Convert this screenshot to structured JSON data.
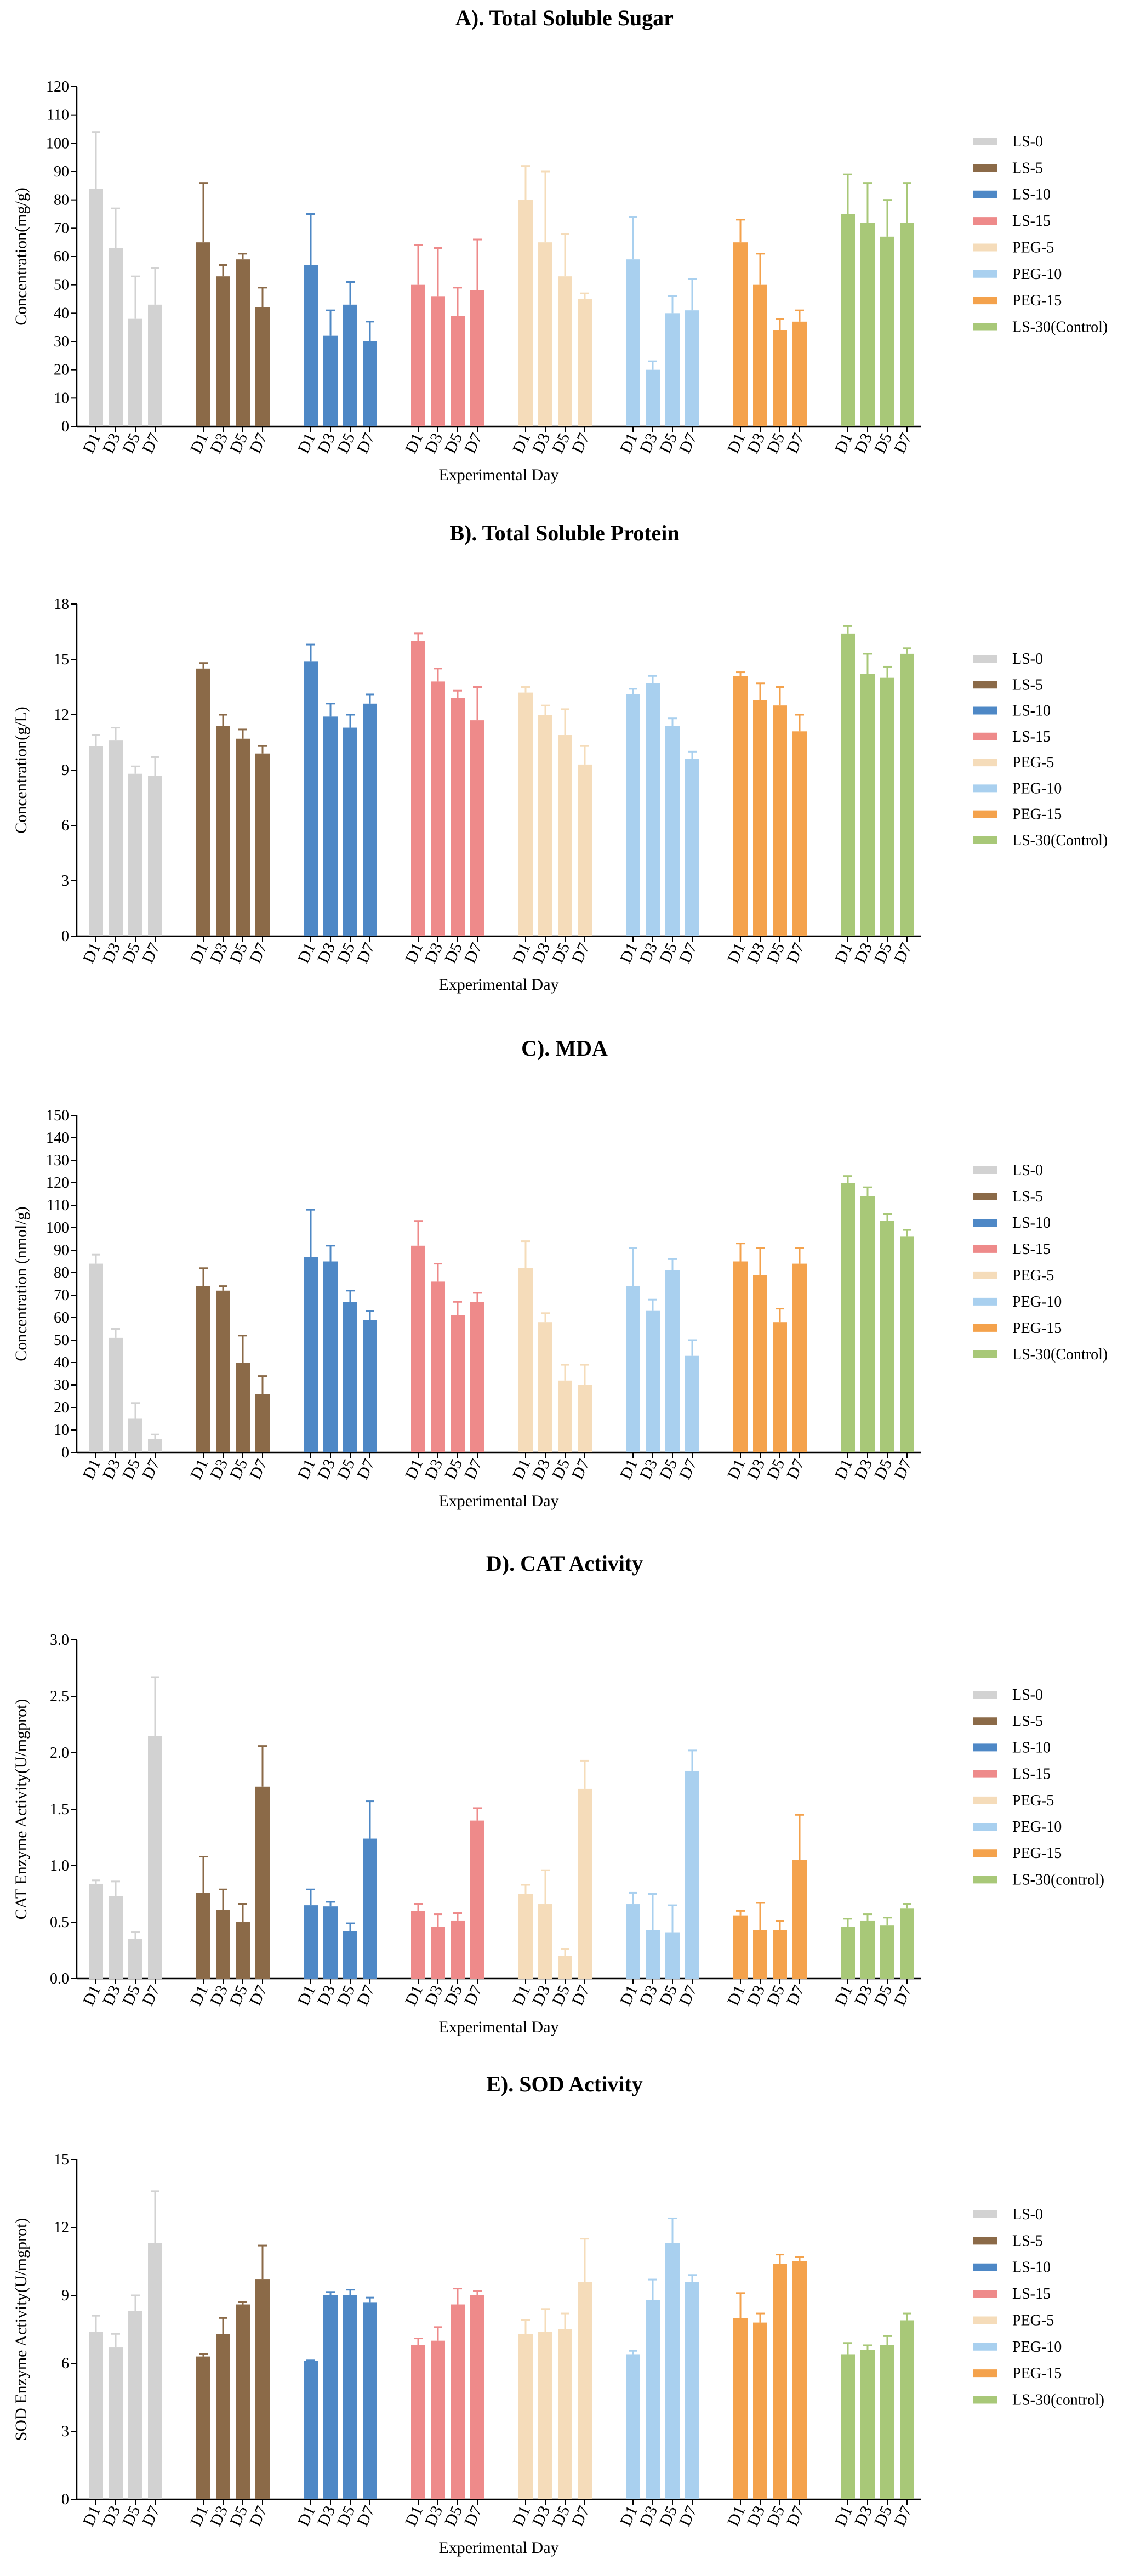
{
  "colors": {
    "LS-0": "#d2d2d2",
    "LS-5": "#8b6a48",
    "LS-10": "#4e88c6",
    "LS-15": "#ee8a8a",
    "PEG-5": "#f5dcba",
    "PEG-10": "#a9d0ef",
    "PEG-15": "#f4a24c",
    "LS-30": "#a8c878"
  },
  "chart_data": [
    {
      "type": "bar",
      "title": "A). Total Soluble Sugar",
      "xlabel": "Experimental Day",
      "ylabel": "Concentration(mg/g)",
      "ylim": [
        0,
        120
      ],
      "yticks": [
        0,
        10,
        20,
        30,
        40,
        50,
        60,
        70,
        80,
        90,
        100,
        110,
        120
      ],
      "categories": [
        "D1",
        "D3",
        "D5",
        "D7"
      ],
      "series": [
        {
          "name": "LS-0",
          "values": [
            84,
            63,
            38,
            43
          ],
          "errors": [
            20,
            14,
            15,
            13
          ]
        },
        {
          "name": "LS-5",
          "values": [
            65,
            53,
            59,
            42
          ],
          "errors": [
            21,
            4,
            2,
            7
          ]
        },
        {
          "name": "LS-10",
          "values": [
            57,
            32,
            43,
            30
          ],
          "errors": [
            18,
            9,
            8,
            7
          ]
        },
        {
          "name": "LS-15",
          "values": [
            50,
            46,
            39,
            48
          ],
          "errors": [
            14,
            17,
            10,
            18
          ]
        },
        {
          "name": "PEG-5",
          "values": [
            80,
            65,
            53,
            45
          ],
          "errors": [
            12,
            25,
            15,
            2
          ]
        },
        {
          "name": "PEG-10",
          "values": [
            59,
            20,
            40,
            41
          ],
          "errors": [
            15,
            3,
            6,
            11
          ]
        },
        {
          "name": "PEG-15",
          "values": [
            65,
            50,
            34,
            37
          ],
          "errors": [
            8,
            11,
            4,
            4
          ]
        },
        {
          "name": "LS-30(Control)",
          "values": [
            75,
            72,
            67,
            72
          ],
          "errors": [
            14,
            14,
            13,
            14
          ]
        }
      ]
    },
    {
      "type": "bar",
      "title": "B). Total Soluble Protein",
      "xlabel": "Experimental Day",
      "ylabel": "Concentration(g/L)",
      "ylim": [
        0,
        18
      ],
      "yticks": [
        0,
        3,
        6,
        9,
        12,
        15,
        18
      ],
      "categories": [
        "D1",
        "D3",
        "D5",
        "D7"
      ],
      "series": [
        {
          "name": "LS-0",
          "values": [
            10.3,
            10.6,
            8.8,
            8.7
          ],
          "errors": [
            0.6,
            0.7,
            0.4,
            1.0
          ]
        },
        {
          "name": "LS-5",
          "values": [
            14.5,
            11.4,
            10.7,
            9.9
          ],
          "errors": [
            0.3,
            0.6,
            0.5,
            0.4
          ]
        },
        {
          "name": "LS-10",
          "values": [
            14.9,
            11.9,
            11.3,
            12.6
          ],
          "errors": [
            0.9,
            0.7,
            0.7,
            0.5
          ]
        },
        {
          "name": "LS-15",
          "values": [
            16.0,
            13.8,
            12.9,
            11.7
          ],
          "errors": [
            0.4,
            0.7,
            0.4,
            1.8
          ]
        },
        {
          "name": "PEG-5",
          "values": [
            13.2,
            12.0,
            10.9,
            9.3
          ],
          "errors": [
            0.3,
            0.5,
            1.4,
            1.0
          ]
        },
        {
          "name": "PEG-10",
          "values": [
            13.1,
            13.7,
            11.4,
            9.6
          ],
          "errors": [
            0.3,
            0.4,
            0.4,
            0.4
          ]
        },
        {
          "name": "PEG-15",
          "values": [
            14.1,
            12.8,
            12.5,
            11.1
          ],
          "errors": [
            0.2,
            0.9,
            1.0,
            0.9
          ]
        },
        {
          "name": "LS-30(Control)",
          "values": [
            16.4,
            14.2,
            14.0,
            15.3
          ],
          "errors": [
            0.4,
            1.1,
            0.6,
            0.3
          ]
        }
      ]
    },
    {
      "type": "bar",
      "title": "C). MDA",
      "xlabel": "Experimental Day",
      "ylabel": "Concentration (nmol/g)",
      "ylim": [
        0,
        150
      ],
      "yticks": [
        0,
        10,
        20,
        30,
        40,
        50,
        60,
        70,
        80,
        90,
        100,
        110,
        120,
        130,
        140,
        150
      ],
      "categories": [
        "D1",
        "D3",
        "D5",
        "D7"
      ],
      "series": [
        {
          "name": "LS-0",
          "values": [
            84,
            51,
            15,
            6
          ],
          "errors": [
            4,
            4,
            7,
            2
          ]
        },
        {
          "name": "LS-5",
          "values": [
            74,
            72,
            40,
            26
          ],
          "errors": [
            8,
            2,
            12,
            8
          ]
        },
        {
          "name": "LS-10",
          "values": [
            87,
            85,
            67,
            59
          ],
          "errors": [
            21,
            7,
            5,
            4
          ]
        },
        {
          "name": "LS-15",
          "values": [
            92,
            76,
            61,
            67
          ],
          "errors": [
            11,
            8,
            6,
            4
          ]
        },
        {
          "name": "PEG-5",
          "values": [
            82,
            58,
            32,
            30
          ],
          "errors": [
            12,
            4,
            7,
            9
          ]
        },
        {
          "name": "PEG-10",
          "values": [
            74,
            63,
            81,
            43
          ],
          "errors": [
            17,
            5,
            5,
            7
          ]
        },
        {
          "name": "PEG-15",
          "values": [
            85,
            79,
            58,
            84
          ],
          "errors": [
            8,
            12,
            6,
            7
          ]
        },
        {
          "name": "LS-30(Control)",
          "values": [
            120,
            114,
            103,
            96
          ],
          "errors": [
            3,
            4,
            3,
            3
          ]
        }
      ]
    },
    {
      "type": "bar",
      "title": "D). CAT Activity",
      "xlabel": "Experimental Day",
      "ylabel": "CAT Enzyme Activity(U/mgprot)",
      "ylim": [
        0,
        3.0
      ],
      "yticks": [
        "0.0",
        "0.5",
        "1.0",
        "1.5",
        "2.0",
        "2.5",
        "3.0"
      ],
      "categories": [
        "D1",
        "D3",
        "D5",
        "D7"
      ],
      "series": [
        {
          "name": "LS-0",
          "values": [
            0.84,
            0.73,
            0.35,
            2.15
          ],
          "errors": [
            0.03,
            0.13,
            0.06,
            0.52
          ]
        },
        {
          "name": "LS-5",
          "values": [
            0.76,
            0.61,
            0.5,
            1.7
          ],
          "errors": [
            0.32,
            0.18,
            0.16,
            0.36
          ]
        },
        {
          "name": "LS-10",
          "values": [
            0.65,
            0.64,
            0.42,
            1.24
          ],
          "errors": [
            0.14,
            0.04,
            0.07,
            0.33
          ]
        },
        {
          "name": "LS-15",
          "values": [
            0.6,
            0.46,
            0.51,
            1.4
          ],
          "errors": [
            0.06,
            0.11,
            0.07,
            0.11
          ]
        },
        {
          "name": "PEG-5",
          "values": [
            0.75,
            0.66,
            0.2,
            1.68
          ],
          "errors": [
            0.08,
            0.3,
            0.06,
            0.25
          ]
        },
        {
          "name": "PEG-10",
          "values": [
            0.66,
            0.43,
            0.41,
            1.84
          ],
          "errors": [
            0.1,
            0.32,
            0.24,
            0.18
          ]
        },
        {
          "name": "PEG-15",
          "values": [
            0.56,
            0.43,
            0.43,
            1.05
          ],
          "errors": [
            0.04,
            0.24,
            0.08,
            0.4
          ]
        },
        {
          "name": "LS-30(control)",
          "values": [
            0.46,
            0.51,
            0.47,
            0.62
          ],
          "errors": [
            0.07,
            0.06,
            0.07,
            0.04
          ]
        }
      ]
    },
    {
      "type": "bar",
      "title": "E). SOD Activity",
      "xlabel": "Experimental Day",
      "ylabel": "SOD Enzyme Activity(U/mgprot)",
      "ylim": [
        0,
        15
      ],
      "yticks": [
        0,
        3,
        6,
        9,
        12,
        15
      ],
      "categories": [
        "D1",
        "D3",
        "D5",
        "D7"
      ],
      "series": [
        {
          "name": "LS-0",
          "values": [
            7.4,
            6.7,
            8.3,
            11.3
          ],
          "errors": [
            0.7,
            0.6,
            0.7,
            2.3
          ]
        },
        {
          "name": "LS-5",
          "values": [
            6.3,
            7.3,
            8.6,
            9.7
          ],
          "errors": [
            0.1,
            0.7,
            0.1,
            1.5
          ]
        },
        {
          "name": "LS-10",
          "values": [
            6.1,
            9.0,
            9.0,
            8.7
          ],
          "errors": [
            0.05,
            0.15,
            0.25,
            0.2
          ]
        },
        {
          "name": "LS-15",
          "values": [
            6.8,
            7.0,
            8.6,
            9.0
          ],
          "errors": [
            0.3,
            0.6,
            0.7,
            0.2
          ]
        },
        {
          "name": "PEG-5",
          "values": [
            7.3,
            7.4,
            7.5,
            9.6
          ],
          "errors": [
            0.6,
            1.0,
            0.7,
            1.9
          ]
        },
        {
          "name": "PEG-10",
          "values": [
            6.4,
            8.8,
            11.3,
            9.6
          ],
          "errors": [
            0.15,
            0.9,
            1.1,
            0.3
          ]
        },
        {
          "name": "PEG-15",
          "values": [
            8.0,
            7.8,
            10.4,
            10.5
          ],
          "errors": [
            1.1,
            0.4,
            0.4,
            0.2
          ]
        },
        {
          "name": "LS-30(control)",
          "values": [
            6.4,
            6.6,
            6.8,
            7.9
          ],
          "errors": [
            0.5,
            0.2,
            0.4,
            0.3
          ]
        }
      ]
    }
  ]
}
